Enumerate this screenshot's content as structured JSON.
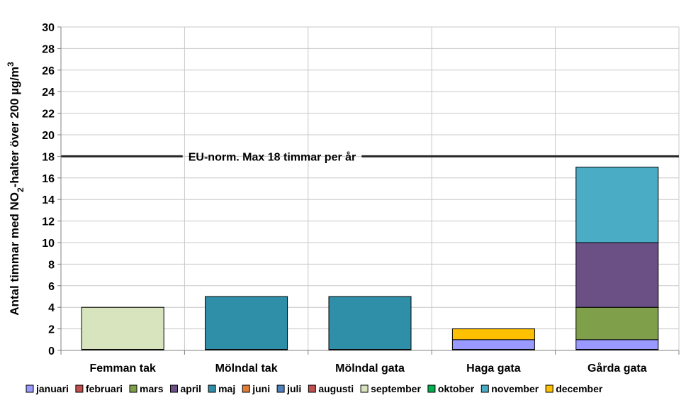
{
  "chart_data": {
    "type": "bar",
    "stacked": true,
    "title": "",
    "xlabel": "",
    "ylabel": "Antal timmar med NO₂-halter över 200 µg/m³",
    "ylim": [
      0,
      30
    ],
    "yticks": [
      0,
      2,
      4,
      6,
      8,
      10,
      12,
      14,
      16,
      18,
      20,
      22,
      24,
      26,
      28,
      30
    ],
    "grid": true,
    "legend_position": "bottom",
    "categories": [
      "Femman tak",
      "Mölndal tak",
      "Mölndal gata",
      "Haga gata",
      "Gårda gata"
    ],
    "series": [
      {
        "name": "januari",
        "color": "#9999ff",
        "values": [
          0,
          0,
          0,
          1,
          1
        ]
      },
      {
        "name": "februari",
        "color": "#c0504d",
        "values": [
          0,
          0,
          0,
          0,
          0
        ]
      },
      {
        "name": "mars",
        "color": "#7f9f4a",
        "values": [
          0,
          0,
          0,
          0,
          3
        ]
      },
      {
        "name": "april",
        "color": "#6b5086",
        "values": [
          0,
          0,
          0,
          0,
          6
        ]
      },
      {
        "name": "maj",
        "color": "#2f8fa8",
        "values": [
          0,
          5,
          5,
          0,
          0
        ]
      },
      {
        "name": "juni",
        "color": "#e07b39",
        "values": [
          0,
          0,
          0,
          0,
          0
        ]
      },
      {
        "name": "juli",
        "color": "#4f81bd",
        "values": [
          0,
          0,
          0,
          0,
          0
        ]
      },
      {
        "name": "augusti",
        "color": "#c0504d",
        "values": [
          0,
          0,
          0,
          0,
          0
        ]
      },
      {
        "name": "september",
        "color": "#d7e4bd",
        "values": [
          4,
          0,
          0,
          0,
          0
        ]
      },
      {
        "name": "oktober",
        "color": "#00b050",
        "values": [
          0,
          0,
          0,
          0,
          0
        ]
      },
      {
        "name": "november",
        "color": "#4bacc6",
        "values": [
          0,
          0,
          0,
          0,
          7
        ]
      },
      {
        "name": "december",
        "color": "#ffc000",
        "values": [
          0,
          0,
          0,
          1,
          0
        ]
      }
    ],
    "reference_line": {
      "value": 18,
      "label": "EU-norm. Max 18 timmar per år",
      "color": "#262626"
    }
  }
}
